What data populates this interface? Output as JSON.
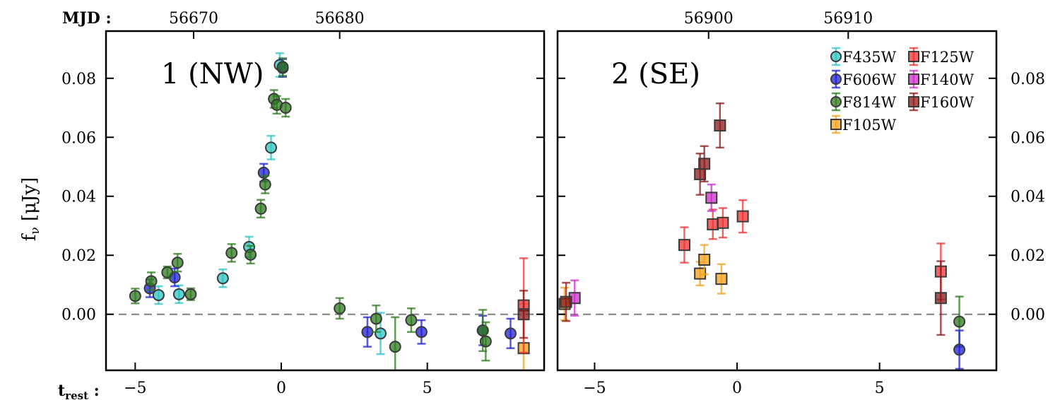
{
  "figure": {
    "ylabel": "fν [μJy]",
    "mjd_prefix": "MJD :",
    "trest_prefix": "trest :"
  },
  "legend": [
    {
      "label": "F435W",
      "color": "#2ec4c4",
      "marker": "circle"
    },
    {
      "label": "F606W",
      "color": "#1f1fd6",
      "marker": "circle"
    },
    {
      "label": "F814W",
      "color": "#2e7a1e",
      "marker": "circle"
    },
    {
      "label": "F105W",
      "color": "#f5a21b",
      "marker": "square"
    },
    {
      "label": "F125W",
      "color": "#f03030",
      "marker": "square"
    },
    {
      "label": "F140W",
      "color": "#cc2ecc",
      "marker": "square"
    },
    {
      "label": "F160W",
      "color": "#8b1a1a",
      "marker": "square"
    }
  ],
  "chart_data": [
    {
      "type": "scatter",
      "title": "1 (NW)",
      "xlabel": "trest",
      "ylabel": "fν [μJy]",
      "xlim": [
        -6,
        9
      ],
      "ylim": [
        -0.019,
        0.096
      ],
      "x_ticks": [
        -5,
        0,
        5
      ],
      "x_tick_labels": [
        "−5",
        "0",
        "5"
      ],
      "y_ticks": [
        0.0,
        0.02,
        0.04,
        0.06,
        0.08
      ],
      "y_tick_labels": [
        "0.00",
        "0.02",
        "0.04",
        "0.06",
        "0.08"
      ],
      "top_axis": {
        "label": "MJD",
        "ticks": [
          {
            "x": -3.0,
            "label": "56670"
          },
          {
            "x": 2.0,
            "label": "56680"
          }
        ]
      },
      "reference_line_y": 0.0,
      "legend": false,
      "series": [
        {
          "name": "F435W",
          "marker": "circle",
          "color": "#2ec4c4",
          "points": [
            {
              "x": -4.2,
              "y": 0.0065,
              "err": 0.003
            },
            {
              "x": -3.5,
              "y": 0.0068,
              "err": 0.003
            },
            {
              "x": -2.0,
              "y": 0.0122,
              "err": 0.003
            },
            {
              "x": -1.1,
              "y": 0.0228,
              "err": 0.0035
            },
            {
              "x": -0.35,
              "y": 0.0565,
              "err": 0.004
            },
            {
              "x": -0.05,
              "y": 0.0845,
              "err": 0.004
            },
            {
              "x": 3.4,
              "y": -0.0065,
              "err": 0.007
            }
          ]
        },
        {
          "name": "F606W",
          "marker": "circle",
          "color": "#1f1fd6",
          "points": [
            {
              "x": -4.5,
              "y": 0.0088,
              "err": 0.003
            },
            {
              "x": -3.65,
              "y": 0.0125,
              "err": 0.003
            },
            {
              "x": -0.6,
              "y": 0.048,
              "err": 0.003
            },
            {
              "x": 0.05,
              "y": 0.0835,
              "err": 0.003
            },
            {
              "x": 2.95,
              "y": -0.006,
              "err": 0.005
            },
            {
              "x": 4.8,
              "y": -0.006,
              "err": 0.004
            },
            {
              "x": 6.9,
              "y": -0.0055,
              "err": 0.005
            },
            {
              "x": 7.85,
              "y": -0.0065,
              "err": 0.005
            }
          ]
        },
        {
          "name": "F814W",
          "marker": "circle",
          "color": "#2e7a1e",
          "points": [
            {
              "x": -5.0,
              "y": 0.0062,
              "err": 0.0025
            },
            {
              "x": -4.45,
              "y": 0.0112,
              "err": 0.003
            },
            {
              "x": -3.9,
              "y": 0.0142,
              "err": 0.002
            },
            {
              "x": -3.55,
              "y": 0.0175,
              "err": 0.003
            },
            {
              "x": -3.1,
              "y": 0.0068,
              "err": 0.002
            },
            {
              "x": -1.7,
              "y": 0.0208,
              "err": 0.003
            },
            {
              "x": -1.05,
              "y": 0.0202,
              "err": 0.003
            },
            {
              "x": -0.7,
              "y": 0.0358,
              "err": 0.003
            },
            {
              "x": -0.55,
              "y": 0.044,
              "err": 0.003
            },
            {
              "x": -0.25,
              "y": 0.073,
              "err": 0.003
            },
            {
              "x": -0.15,
              "y": 0.071,
              "err": 0.003
            },
            {
              "x": 0.05,
              "y": 0.0838,
              "err": 0.003
            },
            {
              "x": 0.15,
              "y": 0.07,
              "err": 0.003
            },
            {
              "x": 2.0,
              "y": 0.002,
              "err": 0.0035
            },
            {
              "x": 3.25,
              "y": -0.0015,
              "err": 0.0045
            },
            {
              "x": 3.9,
              "y": -0.011,
              "err": 0.01
            },
            {
              "x": 4.45,
              "y": -0.002,
              "err": 0.004
            },
            {
              "x": 6.9,
              "y": -0.0055,
              "err": 0.007
            },
            {
              "x": 7.0,
              "y": -0.0092,
              "err": 0.0065
            }
          ]
        },
        {
          "name": "F105W",
          "marker": "square",
          "color": "#f5a21b",
          "points": [
            {
              "x": 8.3,
              "y": -0.0115,
              "err": 0.015
            }
          ]
        },
        {
          "name": "F125W",
          "marker": "square",
          "color": "#f03030",
          "points": [
            {
              "x": 8.3,
              "y": 0.003,
              "err": 0.016
            }
          ]
        },
        {
          "name": "F160W",
          "marker": "square",
          "color": "#8b1a1a",
          "points": [
            {
              "x": 8.3,
              "y": 0.0,
              "err": 0.008
            }
          ]
        }
      ]
    },
    {
      "type": "scatter",
      "title": "2 (SE)",
      "xlabel": "trest",
      "ylabel": "fν [μJy]",
      "xlim": [
        -6.3,
        9.1
      ],
      "ylim": [
        -0.019,
        0.096
      ],
      "x_ticks": [
        -5,
        0,
        5
      ],
      "x_tick_labels": [
        "−5",
        "0",
        "5"
      ],
      "y_ticks": [
        0.0,
        0.02,
        0.04,
        0.06,
        0.08
      ],
      "y_tick_labels": [
        "0.00",
        "0.02",
        "0.04",
        "0.06",
        "0.08"
      ],
      "top_axis": {
        "label": "MJD",
        "ticks": [
          {
            "x": -1.0,
            "label": "56900"
          },
          {
            "x": 3.9,
            "label": "56910"
          }
        ]
      },
      "reference_line_y": 0.0,
      "legend": true,
      "series": [
        {
          "name": "F814W",
          "marker": "circle",
          "color": "#2e7a1e",
          "points": [
            {
              "x": 7.8,
              "y": -0.0025,
              "err": 0.0085
            }
          ]
        },
        {
          "name": "F606W",
          "marker": "circle",
          "color": "#1f1fd6",
          "points": [
            {
              "x": 7.8,
              "y": -0.012,
              "err": 0.0065
            }
          ]
        },
        {
          "name": "F105W",
          "marker": "square",
          "color": "#f5a21b",
          "points": [
            {
              "x": -6.05,
              "y": 0.0035,
              "err": 0.0055
            },
            {
              "x": -1.3,
              "y": 0.0138,
              "err": 0.004
            },
            {
              "x": -1.15,
              "y": 0.0185,
              "err": 0.005
            },
            {
              "x": -0.55,
              "y": 0.012,
              "err": 0.005
            }
          ]
        },
        {
          "name": "F125W",
          "marker": "square",
          "color": "#f03030",
          "points": [
            {
              "x": -1.85,
              "y": 0.0235,
              "err": 0.006
            },
            {
              "x": -0.85,
              "y": 0.0305,
              "err": 0.005
            },
            {
              "x": -0.5,
              "y": 0.031,
              "err": 0.005
            },
            {
              "x": 0.2,
              "y": 0.0332,
              "err": 0.0055
            },
            {
              "x": 7.15,
              "y": 0.0145,
              "err": 0.0095
            }
          ]
        },
        {
          "name": "F140W",
          "marker": "square",
          "color": "#cc2ecc",
          "points": [
            {
              "x": -5.7,
              "y": 0.0055,
              "err": 0.006
            },
            {
              "x": -0.9,
              "y": 0.0395,
              "err": 0.0045
            }
          ]
        },
        {
          "name": "F160W",
          "marker": "square",
          "color": "#8b1a1a",
          "points": [
            {
              "x": -6.0,
              "y": 0.0042,
              "err": 0.0065
            },
            {
              "x": -1.3,
              "y": 0.0475,
              "err": 0.007
            },
            {
              "x": -1.15,
              "y": 0.051,
              "err": 0.006
            },
            {
              "x": -0.6,
              "y": 0.064,
              "err": 0.0075
            },
            {
              "x": 7.15,
              "y": 0.0055,
              "err": 0.0125
            }
          ]
        }
      ]
    }
  ]
}
